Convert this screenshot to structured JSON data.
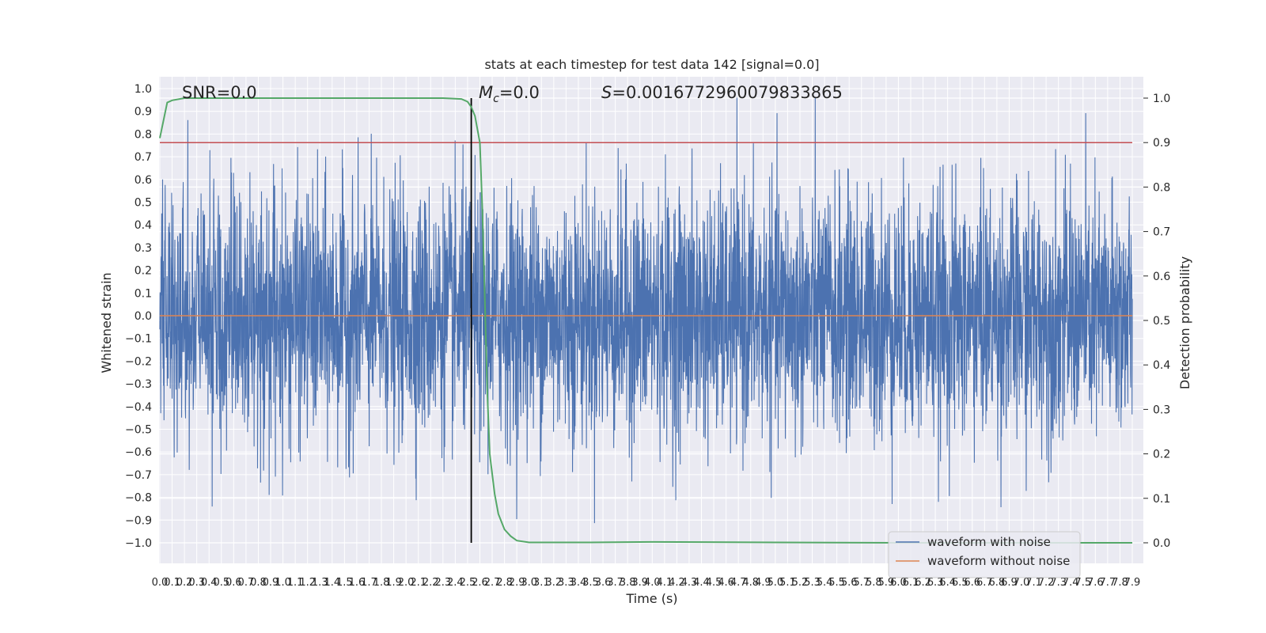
{
  "chart_data": {
    "type": "line",
    "title": "stats at each timestep for test data 142 [signal=0.0]",
    "xlabel": "Time (s)",
    "ylabel_left": "Whitened strain",
    "ylabel_right": "Detection probability",
    "xlim": [
      0.0,
      7.9
    ],
    "ylim_left": [
      -1.0,
      1.0
    ],
    "ylim_right": [
      0.0,
      1.0
    ],
    "grid": true,
    "legend_position": "lower-right",
    "annotations": {
      "snr": "SNR=0.0",
      "mc_symbol": "M",
      "mc_sub": "c",
      "mc_value": "=0.0",
      "s_symbol": "S",
      "s_value": "=0.0016772960079833865"
    },
    "vline_x": 2.53,
    "threshold_y": 0.9,
    "x_ticks": [
      "0.0",
      "0.1",
      "0.2",
      "0.3",
      "0.4",
      "0.5",
      "0.6",
      "0.7",
      "0.8",
      "0.9",
      "1.0",
      "1.1",
      "1.2",
      "1.3",
      "1.4",
      "1.5",
      "1.6",
      "1.7",
      "1.8",
      "1.9",
      "2.0",
      "2.1",
      "2.2",
      "2.3",
      "2.4",
      "2.5",
      "2.6",
      "2.7",
      "2.8",
      "2.9",
      "3.0",
      "3.1",
      "3.2",
      "3.3",
      "3.4",
      "3.5",
      "3.6",
      "3.7",
      "3.8",
      "3.9",
      "4.0",
      "4.1",
      "4.2",
      "4.3",
      "4.4",
      "4.5",
      "4.6",
      "4.7",
      "4.8",
      "4.9",
      "5.0",
      "5.1",
      "5.2",
      "5.3",
      "5.4",
      "5.5",
      "5.6",
      "5.7",
      "5.8",
      "5.9",
      "6.0",
      "6.1",
      "6.2",
      "6.3",
      "6.4",
      "6.5",
      "6.6",
      "6.7",
      "6.8",
      "6.9",
      "7.0",
      "7.1",
      "7.2",
      "7.3",
      "7.4",
      "7.5",
      "7.6",
      "7.7",
      "7.8",
      "7.9"
    ],
    "y_ticks_left": [
      "1.0",
      "0.9",
      "0.8",
      "0.7",
      "0.6",
      "0.5",
      "0.4",
      "0.3",
      "0.2",
      "0.1",
      "0.0",
      "-0.1",
      "-0.2",
      "-0.3",
      "-0.4",
      "-0.5",
      "-0.6",
      "-0.7",
      "-0.8",
      "-0.9",
      "-1.0"
    ],
    "y_ticks_right": [
      "1.0",
      "0.9",
      "0.8",
      "0.7",
      "0.6",
      "0.5",
      "0.4",
      "0.3",
      "0.2",
      "0.1",
      "0.0"
    ],
    "series": [
      {
        "name": "waveform with noise",
        "color": "#4c72b0",
        "kind": "noise",
        "amplitude_range": [
          -0.98,
          0.96
        ]
      },
      {
        "name": "waveform without noise",
        "color": "#dd8452",
        "y": 0.0
      },
      {
        "name": "",
        "color": "#55a868",
        "axis": "right",
        "x": [
          0.0,
          0.06,
          0.1,
          0.2,
          0.5,
          1.0,
          1.5,
          2.0,
          2.3,
          2.45,
          2.5,
          2.53,
          2.56,
          2.6,
          2.62,
          2.64,
          2.66,
          2.68,
          2.72,
          2.75,
          2.8,
          2.85,
          2.9,
          3.0,
          3.5,
          4.0,
          5.0,
          6.0,
          7.0,
          7.9
        ],
        "y": [
          0.91,
          0.99,
          0.995,
          1.0,
          1.0,
          1.0,
          1.0,
          1.0,
          1.0,
          0.998,
          0.992,
          0.98,
          0.96,
          0.9,
          0.75,
          0.55,
          0.34,
          0.2,
          0.11,
          0.065,
          0.03,
          0.015,
          0.005,
          0.001,
          0.001,
          0.002,
          0.001,
          0.0,
          0.0,
          0.0
        ]
      }
    ],
    "colors": {
      "plot_bg": "#eaeaf2",
      "grid": "#ffffff",
      "threshold": "#c44e52",
      "vline": "#000000"
    }
  }
}
